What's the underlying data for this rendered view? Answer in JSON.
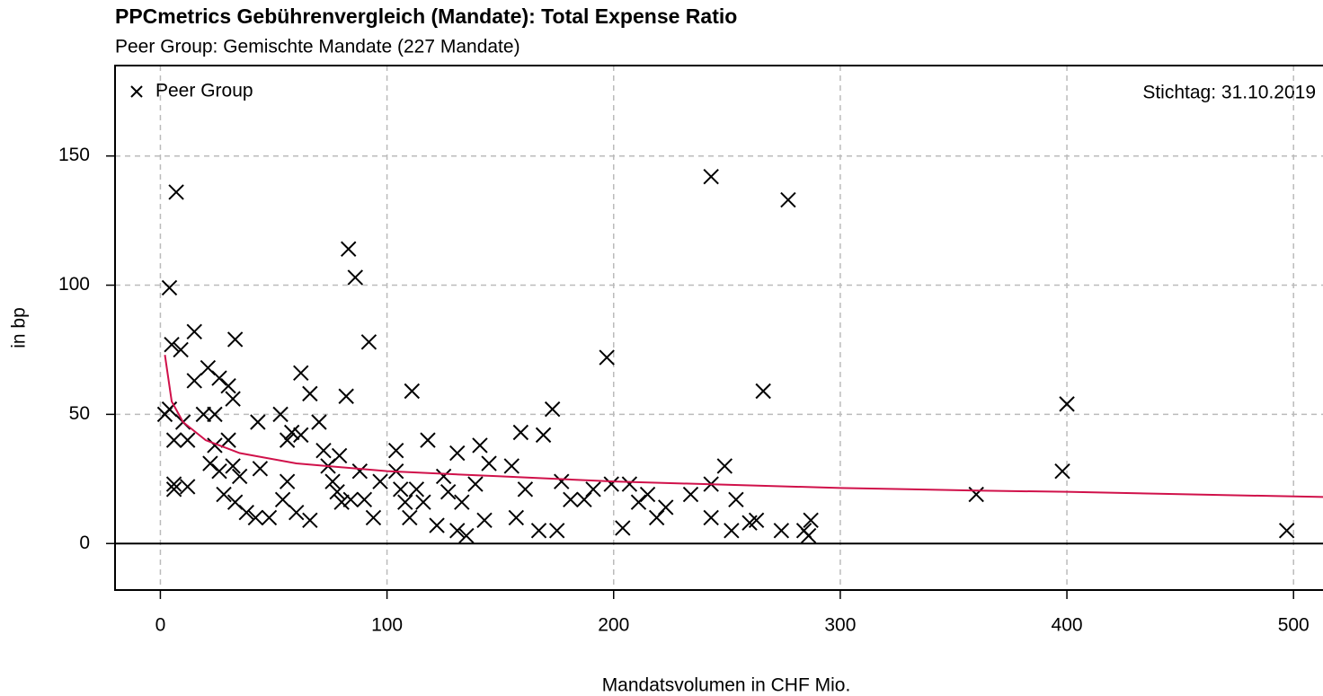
{
  "chart_data": {
    "type": "scatter",
    "title": "PPCmetrics Gebührenvergleich (Mandate): Total Expense Ratio",
    "subtitle": "Peer Group: Gemischte Mandate (227 Mandate)",
    "annotation": "Stichtag: 31.10.2019",
    "x_label": "Mandatsvolumen in CHF Mio.",
    "y_label": "in bp",
    "xlim": [
      -20,
      513
    ],
    "ylim": [
      -18,
      185
    ],
    "xticks": [
      0,
      100,
      200,
      300,
      400,
      500
    ],
    "yticks": [
      0,
      50,
      100,
      150
    ],
    "grid": true,
    "hline": 0,
    "legend": "top-left",
    "series": [
      {
        "name": "Peer Group",
        "color": "#000000",
        "marker": "x",
        "x": [
          4,
          7,
          5,
          9,
          15,
          33,
          83,
          86,
          92,
          111,
          197,
          243,
          277,
          266,
          400,
          398,
          360,
          497,
          4,
          2,
          6,
          6,
          6,
          12,
          10,
          12,
          15,
          21,
          26,
          30,
          24,
          19,
          32,
          30,
          24,
          22,
          26,
          32,
          35,
          28,
          33,
          38,
          42,
          44,
          43,
          48,
          53,
          56,
          58,
          62,
          66,
          62,
          56,
          54,
          60,
          66,
          70,
          72,
          74,
          76,
          78,
          80,
          79,
          84,
          82,
          88,
          90,
          94,
          97,
          104,
          104,
          106,
          108,
          110,
          113,
          116,
          118,
          122,
          125,
          127,
          131,
          133,
          131,
          135,
          139,
          141,
          143,
          145,
          155,
          159,
          161,
          157,
          167,
          169,
          173,
          175,
          177,
          181,
          187,
          191,
          199,
          204,
          207,
          211,
          215,
          219,
          223,
          234,
          243,
          243,
          249,
          252,
          254,
          260,
          263,
          274,
          284,
          287,
          286
        ],
        "values": [
          99,
          136,
          77,
          75,
          82,
          79,
          114,
          103,
          78,
          59,
          72,
          142,
          133,
          59,
          54,
          28,
          19,
          5,
          52,
          50,
          40,
          23,
          21,
          22,
          47,
          40,
          63,
          68,
          64,
          61,
          50,
          50,
          56,
          40,
          38,
          31,
          28,
          30,
          26,
          19,
          16,
          12,
          10,
          29,
          47,
          10,
          50,
          40,
          43,
          66,
          58,
          42,
          24,
          17,
          12,
          9,
          47,
          36,
          30,
          24,
          20,
          16,
          34,
          17,
          57,
          28,
          17,
          10,
          24,
          36,
          28,
          21,
          16,
          10,
          21,
          16,
          40,
          7,
          26,
          20,
          35,
          16,
          5,
          3,
          23,
          38,
          9,
          31,
          30,
          43,
          21,
          10,
          5,
          42,
          52,
          5,
          24,
          17,
          17,
          21,
          23,
          6,
          23,
          16,
          19,
          10,
          14,
          19,
          23,
          10,
          30,
          5,
          17,
          8,
          9,
          5,
          5,
          9,
          3
        ]
      },
      {
        "color": "#d0114a",
        "style": "line",
        "x": [
          2,
          5,
          10,
          20,
          35,
          60,
          100,
          150,
          200,
          300,
          360,
          400,
          513
        ],
        "values": [
          73,
          55,
          47,
          40,
          35,
          31,
          28,
          26,
          24,
          21.5,
          20.5,
          20,
          18
        ]
      }
    ]
  }
}
